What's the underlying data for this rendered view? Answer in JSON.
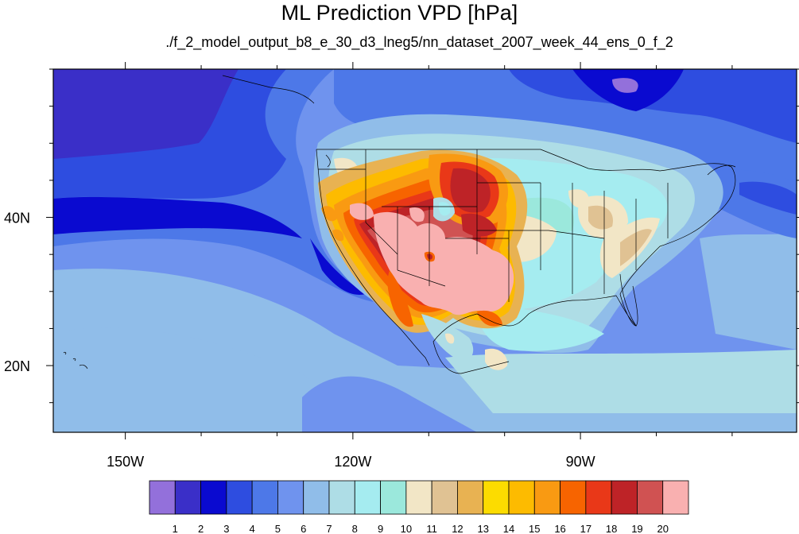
{
  "title": "ML Prediction VPD [hPa]",
  "subtitle": "./f_2_model_output_b8_e_30_d3_lneg5/nn_dataset_2007_week_44_ens_0_f_2",
  "lat_ticks": [
    {
      "label": "40N",
      "lat": 40
    },
    {
      "label": "20N",
      "lat": 20
    }
  ],
  "lon_ticks": [
    {
      "label": "150W",
      "lon": -150
    },
    {
      "label": "120W",
      "lon": -120
    },
    {
      "label": "90W",
      "lon": -90
    }
  ],
  "map_extent": {
    "lon_min": -159.5,
    "lon_max": -61.5,
    "lat_min": 11,
    "lat_max": 60
  },
  "colorbar": {
    "labels": [
      "1",
      "2",
      "3",
      "4",
      "5",
      "6",
      "7",
      "8",
      "9",
      "10",
      "11",
      "12",
      "13",
      "14",
      "15",
      "16",
      "17",
      "18",
      "19",
      "20"
    ],
    "colors": [
      "#9370db",
      "#3a2fc8",
      "#0a0ad0",
      "#2e4de0",
      "#4d78e8",
      "#6f93ee",
      "#90bde9",
      "#aedde6",
      "#a5ecf0",
      "#9be8dc",
      "#f2e6c6",
      "#e0c293",
      "#e8b252",
      "#fcdc00",
      "#fdbb00",
      "#f99a12",
      "#f76400",
      "#e93818",
      "#be2327",
      "#d05252",
      "#f9b0b0"
    ]
  }
}
